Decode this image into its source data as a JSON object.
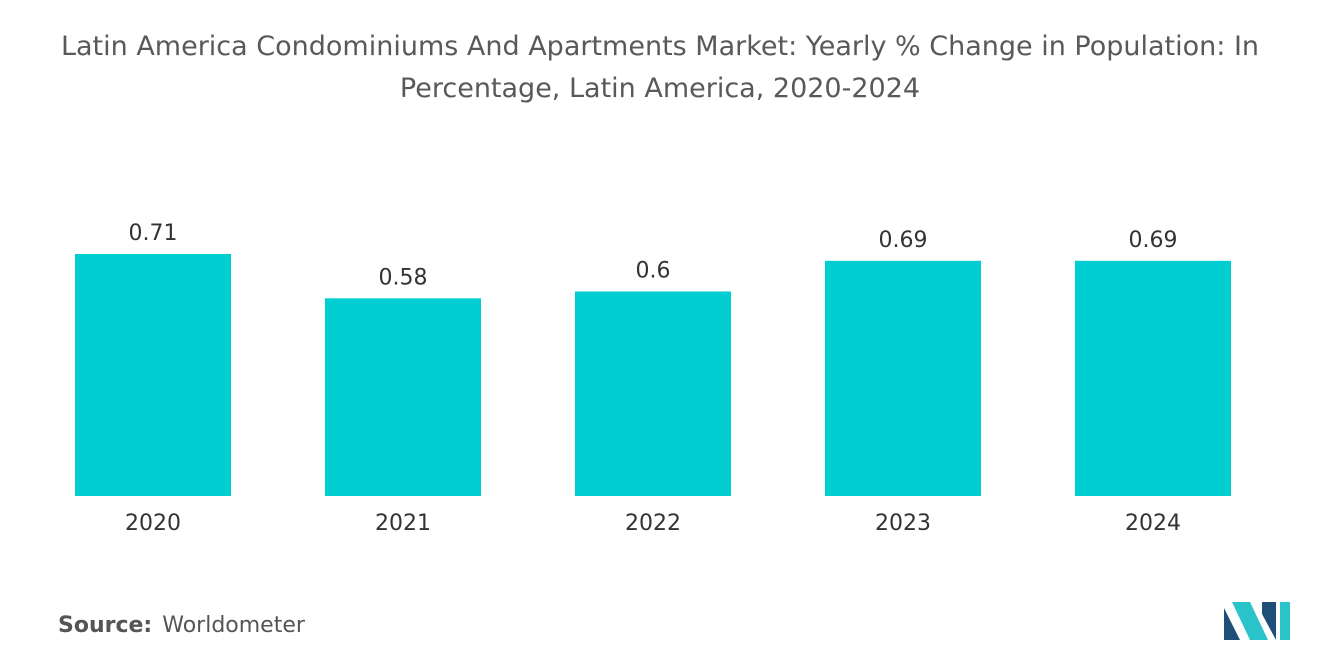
{
  "chart_data": {
    "type": "bar",
    "title": "Latin America Condominiums And Apartments Market: Yearly % Change in Population: In Percentage, Latin America, 2020-2024",
    "categories": [
      "2020",
      "2021",
      "2022",
      "2023",
      "2024"
    ],
    "values": [
      0.71,
      0.58,
      0.6,
      0.69,
      0.69
    ],
    "value_labels": [
      "0.71",
      "0.58",
      "0.6",
      "0.69",
      "0.69"
    ],
    "xlabel": "",
    "ylabel": "",
    "ylim": [
      0,
      0.71
    ],
    "grid": false,
    "legend": "none",
    "bar_color": "#00CED1"
  },
  "source": {
    "key": "Source:",
    "value": "Worldometer"
  },
  "logo": {
    "icon": "mordor-intelligence-logo-icon",
    "color_dark": "#1F4E79",
    "color_light": "#29C3C9"
  }
}
